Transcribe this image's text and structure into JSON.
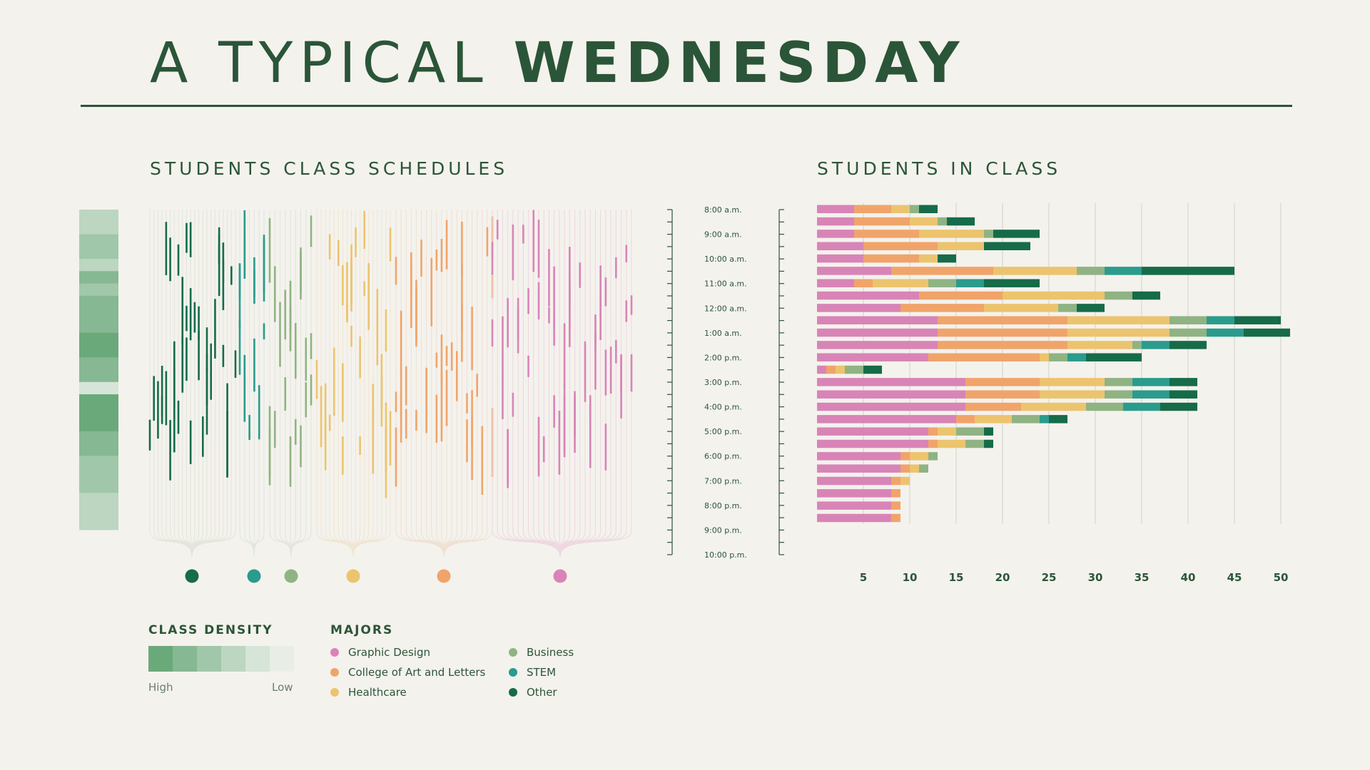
{
  "header": {
    "title_light": "A TYPICAL",
    "title_bold": "WEDNESDAY"
  },
  "left_panel": {
    "title": "STUDENTS CLASS SCHEDULES"
  },
  "legend": {
    "density_title": "CLASS DENSITY",
    "density_high": "High",
    "density_low": "Low",
    "density_colors": [
      "#6aa97a",
      "#86b893",
      "#a1c7aa",
      "#bcd6c1",
      "#d6e5d8",
      "#e8eee5"
    ],
    "majors_title": "MAJORS",
    "majors": [
      {
        "name": "Graphic Design",
        "color": "#d884b7"
      },
      {
        "name": "College of Art and Letters",
        "color": "#f0a46a"
      },
      {
        "name": "Healthcare",
        "color": "#ecc46e"
      },
      {
        "name": "Business",
        "color": "#8fb383"
      },
      {
        "name": "STEM",
        "color": "#2a9b8c"
      },
      {
        "name": "Other",
        "color": "#166b49"
      }
    ]
  },
  "chart_data": {
    "type": "bar",
    "stacked": true,
    "orientation": "horizontal",
    "title": "STUDENTS IN CLASS",
    "xlim": [
      0,
      51
    ],
    "x_ticks": [
      5,
      10,
      15,
      20,
      25,
      30,
      35,
      40,
      45,
      50
    ],
    "grid": true,
    "time_labels": [
      "8:00 a.m.",
      "9:00 a.m.",
      "10:00 a.m.",
      "11:00 a.m.",
      "12:00 a.m.",
      "1:00 a.m.",
      "2:00 p.m.",
      "3:00 p.m.",
      "4:00 p.m.",
      "5:00 p.m.",
      "6:00 p.m.",
      "7:00 p.m.",
      "8:00 p.m.",
      "9:00 p.m.",
      "10:00 p.m."
    ],
    "series": [
      {
        "name": "Graphic Design",
        "color": "#d884b7",
        "values": [
          4,
          4,
          4,
          5,
          5,
          8,
          4,
          11,
          9,
          13,
          13,
          13,
          12,
          1,
          16,
          16,
          16,
          15,
          12,
          12,
          9,
          9,
          8,
          8,
          8,
          8
        ]
      },
      {
        "name": "College of Art and Letters",
        "color": "#f0a46a",
        "values": [
          4,
          6,
          7,
          8,
          6,
          11,
          2,
          9,
          9,
          14,
          14,
          14,
          12,
          1,
          8,
          8,
          6,
          2,
          1,
          1,
          1,
          1,
          1,
          1,
          1,
          1
        ]
      },
      {
        "name": "Healthcare",
        "color": "#ecc46e",
        "values": [
          2,
          3,
          7,
          5,
          2,
          9,
          6,
          11,
          8,
          11,
          11,
          7,
          1,
          1,
          7,
          7,
          7,
          4,
          2,
          3,
          2,
          1,
          1,
          0,
          0,
          0
        ]
      },
      {
        "name": "Business",
        "color": "#8fb383",
        "values": [
          1,
          1,
          1,
          0,
          0,
          3,
          3,
          3,
          2,
          4,
          4,
          1,
          2,
          2,
          3,
          3,
          4,
          3,
          3,
          2,
          1,
          1,
          0,
          0,
          0,
          0
        ]
      },
      {
        "name": "STEM",
        "color": "#2a9b8c",
        "values": [
          0,
          0,
          0,
          0,
          0,
          4,
          3,
          0,
          0,
          3,
          4,
          3,
          2,
          0,
          4,
          4,
          4,
          1,
          0,
          0,
          0,
          0,
          0,
          0,
          0,
          0
        ]
      },
      {
        "name": "Other",
        "color": "#166b49",
        "values": [
          2,
          3,
          5,
          5,
          2,
          10,
          6,
          3,
          3,
          5,
          5,
          4,
          6,
          2,
          3,
          3,
          4,
          2,
          1,
          1,
          0,
          0,
          0,
          0,
          0,
          0
        ]
      }
    ]
  }
}
